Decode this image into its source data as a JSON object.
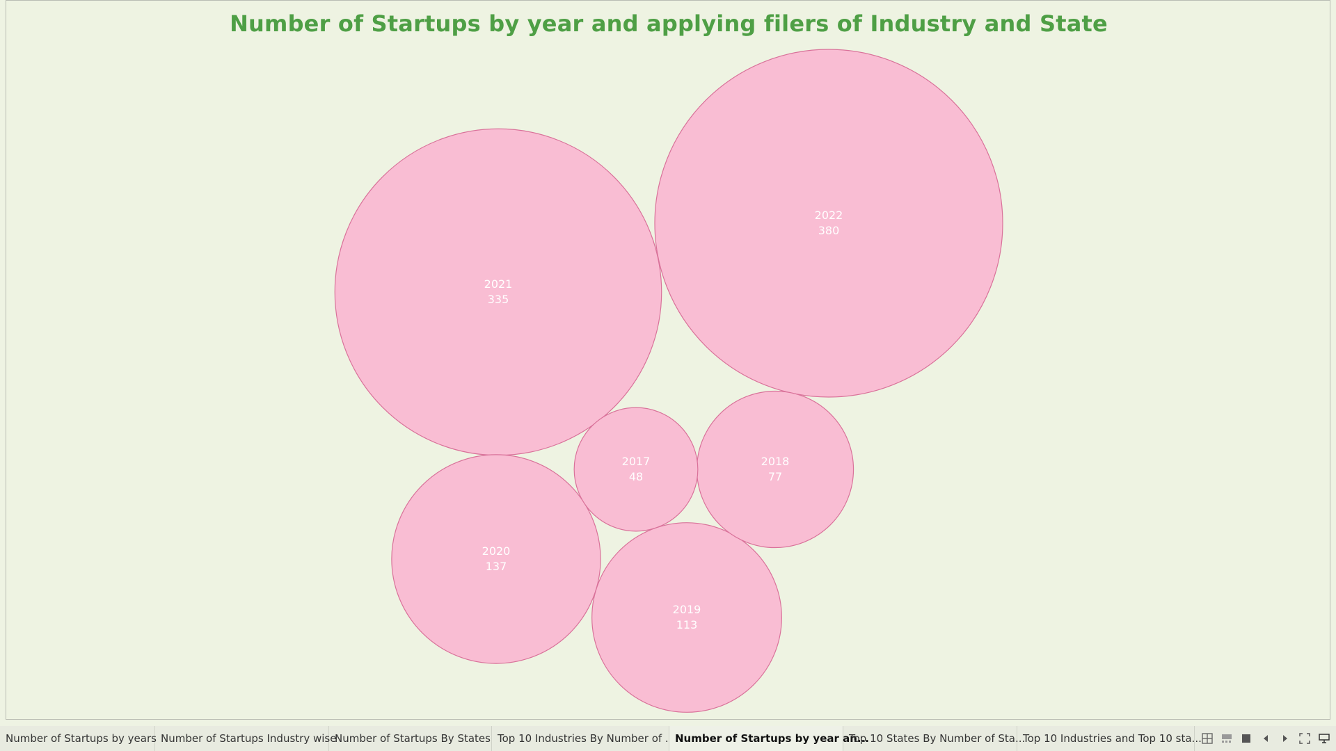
{
  "title": "Number of Startups by year and applying filers of Industry and State",
  "colors": {
    "bubble_fill": "#f9bdd3",
    "bubble_stroke": "#d9729a",
    "title": "#4e9f45",
    "background": "#eef3e2"
  },
  "chart_data": {
    "type": "bubble",
    "title": "Number of Startups by year and applying filers of Industry and State",
    "points": [
      {
        "year": "2022",
        "count": 380
      },
      {
        "year": "2021",
        "count": 335
      },
      {
        "year": "2020",
        "count": 137
      },
      {
        "year": "2019",
        "count": 113
      },
      {
        "year": "2018",
        "count": 77
      },
      {
        "year": "2017",
        "count": 48
      }
    ]
  },
  "tabs": [
    {
      "label": "Number of Startups by years",
      "active": false
    },
    {
      "label": "Number of Startups Industry wise",
      "active": false
    },
    {
      "label": "Number of Startups By States",
      "active": false
    },
    {
      "label": "Top 10 Industries By Number of ...",
      "active": false
    },
    {
      "label": "Number of Startups by year an...",
      "active": true
    },
    {
      "label": "Top 10 States By Number of Sta...",
      "active": false
    },
    {
      "label": "Top 10 Industries and Top 10 sta...",
      "active": false
    }
  ],
  "tab_controls": [
    {
      "icon": "sheet-sorter-icon"
    },
    {
      "icon": "filmstrip-icon"
    },
    {
      "icon": "tab-view-icon"
    },
    {
      "icon": "previous-arrow-icon"
    },
    {
      "icon": "next-arrow-icon"
    },
    {
      "icon": "fullscreen-icon"
    },
    {
      "icon": "presentation-icon"
    }
  ]
}
